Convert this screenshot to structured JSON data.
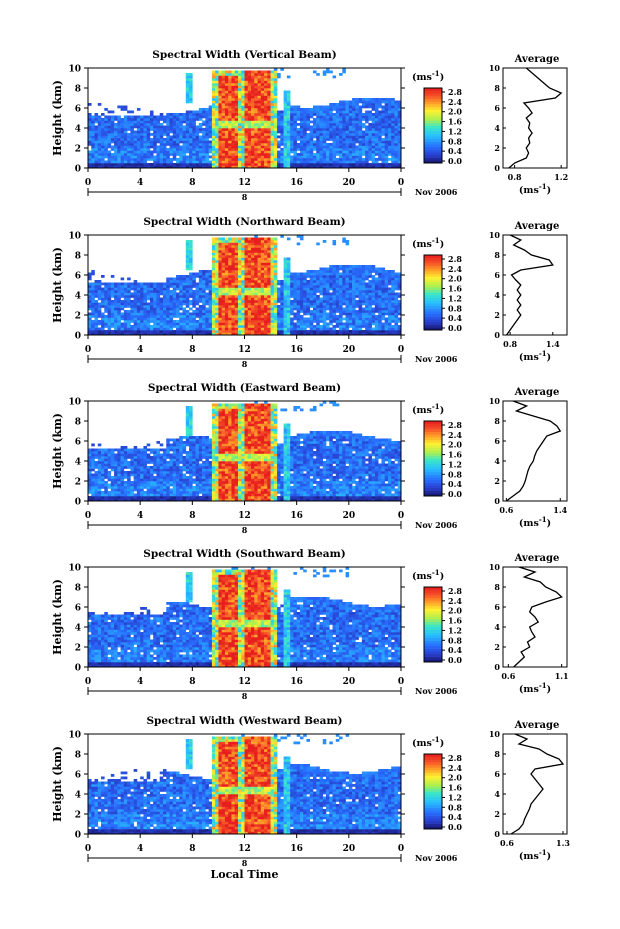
{
  "figure": {
    "x_axis_title": "Local Time",
    "y_axis_title": "Height (km)",
    "date_label": "Nov 2006",
    "date_tick_label": "8",
    "colorbar_unit": "(ms",
    "colorbar_unit_exp": "-1",
    "avg_title": "Average",
    "avg_unit": "(ms",
    "avg_unit_exp": "-1"
  },
  "chart_data": [
    {
      "type": "heatmap",
      "title": "Spectral Width (Vertical Beam)",
      "x_ticks": [
        "0",
        "4",
        "8",
        "12",
        "16",
        "20",
        "0"
      ],
      "y_ticks": [
        "0",
        "2",
        "4",
        "6",
        "8",
        "10"
      ],
      "xlim": [
        0,
        24
      ],
      "ylim": [
        0,
        10
      ],
      "colorbar_ticks": [
        "0.0",
        "0.4",
        "0.8",
        "1.2",
        "1.6",
        "2.0",
        "2.4",
        "2.8"
      ],
      "colorbar_range": [
        0,
        2.8
      ],
      "profile": {
        "title": "Average",
        "x_ticks": [
          "0.8",
          "1.2"
        ],
        "xlim": [
          0.7,
          1.25
        ],
        "height_km": [
          0,
          0.5,
          1,
          1.5,
          2,
          2.5,
          3,
          3.5,
          4,
          4.5,
          5,
          5.5,
          6,
          6.5,
          7,
          7.5,
          8,
          8.5,
          9,
          9.5,
          10
        ],
        "width": [
          0.75,
          0.8,
          0.9,
          0.92,
          0.9,
          0.93,
          0.92,
          0.95,
          0.92,
          0.93,
          0.9,
          0.95,
          0.92,
          0.88,
          1.15,
          1.2,
          1.1,
          1.05,
          1.0,
          0.95,
          0.9
        ]
      }
    },
    {
      "type": "heatmap",
      "title": "Spectral Width (Northward Beam)",
      "x_ticks": [
        "0",
        "4",
        "8",
        "12",
        "16",
        "20",
        "0"
      ],
      "y_ticks": [
        "0",
        "2",
        "4",
        "6",
        "8",
        "10"
      ],
      "xlim": [
        0,
        24
      ],
      "ylim": [
        0,
        10
      ],
      "colorbar_ticks": [
        "0.0",
        "0.4",
        "0.8",
        "1.2",
        "1.6",
        "2.0",
        "2.4",
        "2.8"
      ],
      "colorbar_range": [
        0,
        2.8
      ],
      "profile": {
        "title": "Average",
        "x_ticks": [
          "0.8",
          "1.4"
        ],
        "xlim": [
          0.7,
          1.6
        ],
        "height_km": [
          0,
          0.5,
          1,
          1.5,
          2,
          2.5,
          3,
          3.5,
          4,
          4.5,
          5,
          5.5,
          6,
          6.5,
          7,
          7.5,
          8,
          8.5,
          9,
          9.5,
          10
        ],
        "width": [
          0.75,
          0.8,
          0.85,
          0.9,
          0.95,
          0.9,
          0.95,
          0.9,
          0.95,
          0.9,
          0.95,
          0.88,
          0.82,
          0.95,
          1.4,
          1.35,
          1.1,
          1.0,
          0.85,
          0.95,
          0.8
        ]
      }
    },
    {
      "type": "heatmap",
      "title": "Spectral Width (Eastward Beam)",
      "x_ticks": [
        "0",
        "4",
        "8",
        "12",
        "16",
        "20",
        "0"
      ],
      "y_ticks": [
        "0",
        "2",
        "4",
        "6",
        "8",
        "10"
      ],
      "xlim": [
        0,
        24
      ],
      "ylim": [
        0,
        10
      ],
      "colorbar_ticks": [
        "0.0",
        "0.4",
        "0.8",
        "1.2",
        "1.6",
        "2.0",
        "2.4",
        "2.8"
      ],
      "colorbar_range": [
        0,
        2.8
      ],
      "profile": {
        "title": "Average",
        "x_ticks": [
          "0.6",
          "1.4"
        ],
        "xlim": [
          0.55,
          1.5
        ],
        "height_km": [
          0,
          0.5,
          1,
          1.5,
          2,
          2.5,
          3,
          3.5,
          4,
          4.5,
          5,
          5.5,
          6,
          6.5,
          7,
          7.5,
          8,
          8.5,
          9,
          9.5,
          10
        ],
        "width": [
          0.6,
          0.7,
          0.8,
          0.85,
          0.88,
          0.9,
          0.92,
          0.95,
          1.0,
          1.02,
          1.05,
          1.1,
          1.15,
          1.2,
          1.4,
          1.35,
          1.25,
          1.0,
          0.75,
          0.9,
          0.7
        ]
      }
    },
    {
      "type": "heatmap",
      "title": "Spectral Width (Southward Beam)",
      "x_ticks": [
        "0",
        "4",
        "8",
        "12",
        "16",
        "20",
        "0"
      ],
      "y_ticks": [
        "0",
        "2",
        "4",
        "6",
        "8",
        "10"
      ],
      "xlim": [
        0,
        24
      ],
      "ylim": [
        0,
        10
      ],
      "colorbar_ticks": [
        "0.0",
        "0.4",
        "0.8",
        "1.2",
        "1.6",
        "2.0",
        "2.4",
        "2.8"
      ],
      "colorbar_range": [
        0,
        2.8
      ],
      "profile": {
        "title": "Average",
        "x_ticks": [
          "0.6",
          "1.1"
        ],
        "xlim": [
          0.55,
          1.15
        ],
        "height_km": [
          0,
          0.5,
          1,
          1.5,
          2,
          2.5,
          3,
          3.5,
          4,
          4.5,
          5,
          5.5,
          6,
          6.5,
          7,
          7.5,
          8,
          8.5,
          9,
          9.5,
          10
        ],
        "width": [
          0.65,
          0.7,
          0.75,
          0.72,
          0.8,
          0.78,
          0.85,
          0.82,
          0.8,
          0.88,
          0.85,
          0.8,
          0.82,
          0.95,
          1.1,
          1.05,
          0.95,
          0.9,
          0.75,
          0.85,
          0.7
        ]
      }
    },
    {
      "type": "heatmap",
      "title": "Spectral Width (Westward Beam)",
      "x_ticks": [
        "0",
        "4",
        "8",
        "12",
        "16",
        "20",
        "0"
      ],
      "y_ticks": [
        "0",
        "2",
        "4",
        "6",
        "8",
        "10"
      ],
      "xlim": [
        0,
        24
      ],
      "ylim": [
        0,
        10
      ],
      "colorbar_ticks": [
        "0.0",
        "0.4",
        "0.8",
        "1.2",
        "1.6",
        "2.0",
        "2.4",
        "2.8"
      ],
      "colorbar_range": [
        0,
        2.8
      ],
      "profile": {
        "title": "Average",
        "x_ticks": [
          "0.6",
          "1.3"
        ],
        "xlim": [
          0.55,
          1.35
        ],
        "height_km": [
          0,
          0.5,
          1,
          1.5,
          2,
          2.5,
          3,
          3.5,
          4,
          4.5,
          5,
          5.5,
          6,
          6.5,
          7,
          7.5,
          8,
          8.5,
          9,
          9.5,
          10
        ],
        "width": [
          0.65,
          0.75,
          0.8,
          0.82,
          0.85,
          0.88,
          0.9,
          0.95,
          1.0,
          1.05,
          1.0,
          0.95,
          0.9,
          0.95,
          1.3,
          1.25,
          1.1,
          1.0,
          0.75,
          0.85,
          0.7
        ]
      }
    }
  ]
}
